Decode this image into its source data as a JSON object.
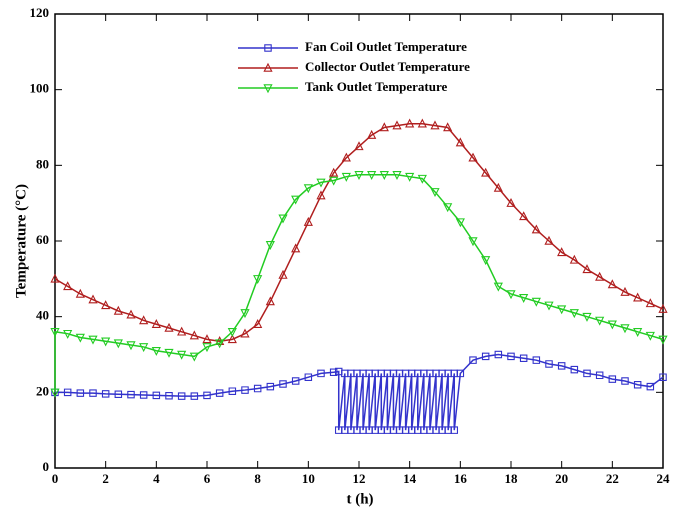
{
  "chart_data": {
    "type": "line",
    "xlabel": "t (h)",
    "ylabel": "Temperature (°C)",
    "xlim": [
      0,
      24
    ],
    "xticks": [
      0,
      2,
      4,
      6,
      8,
      10,
      12,
      14,
      16,
      18,
      20,
      22,
      24
    ],
    "ylim": [
      0,
      120
    ],
    "yticks": [
      0,
      20,
      40,
      60,
      80,
      100,
      120
    ],
    "legend": "top",
    "series": [
      {
        "name": "Fan Coil Outlet Temperature",
        "color": "#3333cc",
        "marker": "square",
        "x": [
          0,
          0.5,
          1,
          1.5,
          2,
          2.5,
          3,
          3.5,
          4,
          4.5,
          5,
          5.5,
          6,
          6.5,
          7,
          7.5,
          8,
          8.5,
          9,
          9.5,
          10,
          10.5,
          11,
          11.2,
          11.2,
          11.44,
          11.44,
          11.68,
          11.68,
          11.92,
          11.92,
          12.16,
          12.16,
          12.4,
          12.4,
          12.64,
          12.64,
          12.88,
          12.88,
          13.12,
          13.12,
          13.36,
          13.36,
          13.6,
          13.6,
          13.84,
          13.84,
          14.08,
          14.08,
          14.32,
          14.32,
          14.56,
          14.56,
          14.8,
          14.8,
          15.04,
          15.04,
          15.28,
          15.28,
          15.52,
          15.52,
          15.76,
          15.76,
          16,
          16.5,
          17,
          17.5,
          18,
          18.5,
          19,
          19.5,
          20,
          20.5,
          21,
          21.5,
          22,
          22.5,
          23,
          23.5,
          24
        ],
        "values": [
          20,
          20,
          19.8,
          19.8,
          19.6,
          19.5,
          19.4,
          19.3,
          19.2,
          19.1,
          19,
          19,
          19.2,
          19.8,
          20.3,
          20.6,
          21,
          21.5,
          22.2,
          23,
          24,
          25,
          25.3,
          25.5,
          10,
          25,
          10,
          25,
          10,
          25,
          10,
          25,
          10,
          25,
          10,
          25,
          10,
          25,
          10,
          25,
          10,
          25,
          10,
          25,
          10,
          25,
          10,
          25,
          10,
          25,
          10,
          25,
          10,
          25,
          10,
          25,
          10,
          25,
          10,
          25,
          10,
          25,
          10,
          25,
          28.5,
          29.5,
          30,
          29.5,
          29,
          28.5,
          27.5,
          27,
          26,
          25,
          24.5,
          23.5,
          23,
          22,
          21.5,
          24
        ]
      },
      {
        "name": "Collector Outlet Temperature",
        "color": "#b01e1e",
        "marker": "triangle-up",
        "x": [
          0,
          0.5,
          1,
          1.5,
          2,
          2.5,
          3,
          3.5,
          4,
          4.5,
          5,
          5.5,
          6,
          6.5,
          7,
          7.5,
          8,
          8.5,
          9,
          9.5,
          10,
          10.5,
          11,
          11.5,
          12,
          12.5,
          13,
          13.5,
          14,
          14.5,
          15,
          15.5,
          16,
          16.5,
          17,
          17.5,
          18,
          18.5,
          19,
          19.5,
          20,
          20.5,
          21,
          21.5,
          22,
          22.5,
          23,
          23.5,
          24
        ],
        "values": [
          50,
          48,
          46,
          44.5,
          43,
          41.5,
          40.5,
          39,
          38,
          37,
          36,
          35,
          34,
          33.5,
          34,
          35.5,
          38,
          44,
          51,
          58,
          65,
          72,
          78,
          82,
          85,
          88,
          90,
          90.5,
          91,
          91,
          90.5,
          90,
          86,
          82,
          78,
          74,
          70,
          66.5,
          63,
          60,
          57,
          55,
          52.5,
          50.5,
          48.5,
          46.5,
          45,
          43.5,
          42
        ]
      },
      {
        "name": "Tank Outlet Temperature",
        "color": "#22cc22",
        "marker": "triangle-down",
        "x": [
          0,
          0,
          0.5,
          1,
          1.5,
          2,
          2.5,
          3,
          3.5,
          4,
          4.5,
          5,
          5.5,
          6,
          6.5,
          7,
          7.5,
          8,
          8.5,
          9,
          9.5,
          10,
          10.5,
          11,
          11.5,
          12,
          12.5,
          13,
          13.5,
          14,
          14.5,
          15,
          15.5,
          16,
          16.5,
          17,
          17.5,
          18,
          18.5,
          19,
          19.5,
          20,
          20.5,
          21,
          21.5,
          22,
          22.5,
          23,
          23.5,
          24
        ],
        "values": [
          20,
          36,
          35.5,
          34.5,
          34,
          33.5,
          33,
          32.5,
          32,
          31,
          30.5,
          30,
          29.5,
          32,
          33,
          36,
          41,
          50,
          59,
          66,
          71,
          74,
          75.5,
          76,
          77,
          77.5,
          77.5,
          77.5,
          77.5,
          77,
          76.5,
          73,
          69,
          65,
          60,
          55,
          48,
          46,
          45,
          44,
          43,
          42,
          41,
          40,
          39,
          38,
          37,
          36,
          35,
          34
        ]
      }
    ]
  }
}
